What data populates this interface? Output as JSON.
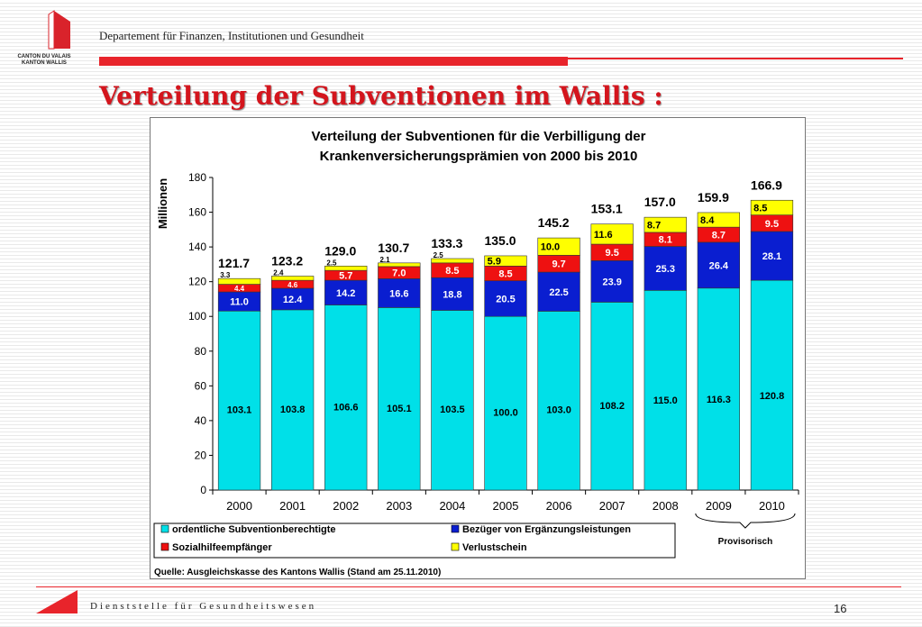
{
  "header": {
    "logo_line1": "CANTON DU VALAIS",
    "logo_line2": "KANTON WALLIS",
    "department": "Departement für Finanzen, Institutionen und Gesundheit"
  },
  "slide_title": "Verteilung der Subventionen im Wallis :",
  "chart_data": {
    "type": "bar",
    "stacked": true,
    "title_line1": "Verteilung der Subventionen für die Verbilligung der",
    "title_line2": "Krankenversicherungsprämien von 2000 bis 2010",
    "ylabel": "Millionen",
    "xlabel": "",
    "ylim": [
      0,
      180
    ],
    "yticks": [
      0,
      20,
      40,
      60,
      80,
      100,
      120,
      140,
      160,
      180
    ],
    "categories": [
      "2000",
      "2001",
      "2002",
      "2003",
      "2004",
      "2005",
      "2006",
      "2007",
      "2008",
      "2009",
      "2010"
    ],
    "series": [
      {
        "name": "ordentliche Subventionberechtigte",
        "color": "#00e0e8",
        "values": [
          103.1,
          103.8,
          106.6,
          105.1,
          103.5,
          100.0,
          103.0,
          108.2,
          115.0,
          116.3,
          120.8
        ]
      },
      {
        "name": "Bezüger von Ergänzungsleistungen",
        "color": "#0a1ed0",
        "values": [
          11.0,
          12.4,
          14.2,
          16.6,
          18.8,
          20.5,
          22.5,
          23.9,
          25.3,
          26.4,
          28.1
        ]
      },
      {
        "name": "Sozialhilfeempfänger",
        "color": "#ee1111",
        "values": [
          4.4,
          4.6,
          5.7,
          7.0,
          8.5,
          8.5,
          9.7,
          9.5,
          8.1,
          8.7,
          9.5
        ]
      },
      {
        "name": "Verlustschein",
        "color": "#ffff00",
        "values": [
          3.3,
          2.4,
          2.5,
          2.1,
          2.5,
          5.9,
          10.0,
          11.6,
          8.7,
          8.4,
          8.5
        ]
      }
    ],
    "totals": [
      "121.7",
      "123.2",
      "129.0",
      "130.7",
      "133.3",
      "135.0",
      "145.2",
      "153.1",
      "157.0",
      "159.9",
      "166.9"
    ],
    "annotation": "Provisorisch",
    "source": "Quelle: Ausgleichskasse des Kantons Wallis (Stand am 25.11.2010)",
    "grid": false,
    "legend_position": "bottom"
  },
  "footer": {
    "service": "Dienststelle für Gesundheitswesen",
    "page_number": "16"
  }
}
